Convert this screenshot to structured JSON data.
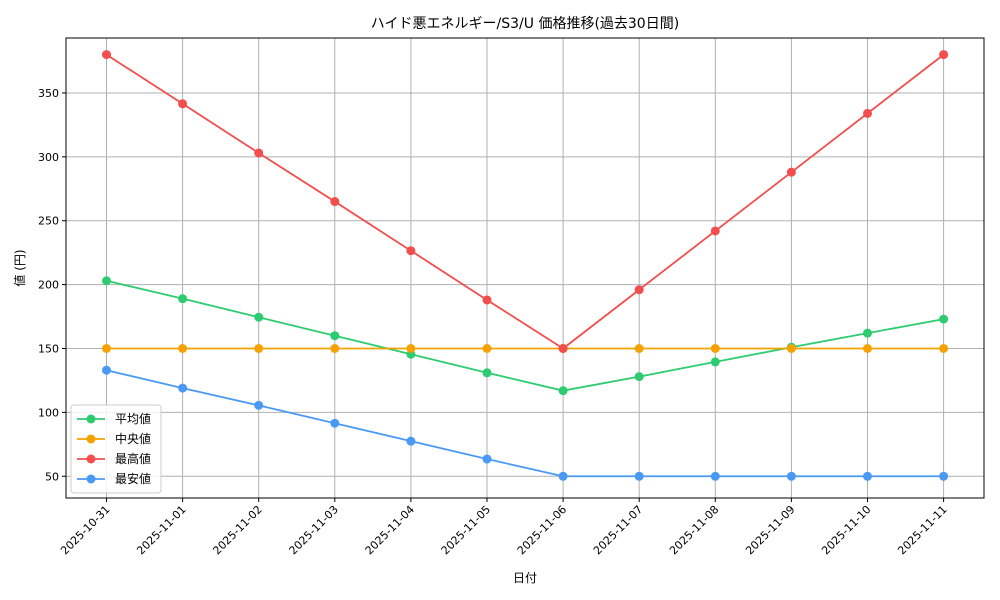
{
  "chart_data": {
    "type": "line",
    "title": "ハイド悪エネルギー/S3/U 価格推移(過去30日間)",
    "xlabel": "日付",
    "ylabel": "値 (円)",
    "categories": [
      "2025-10-31",
      "2025-11-01",
      "2025-11-02",
      "2025-11-03",
      "2025-11-04",
      "2025-11-05",
      "2025-11-06",
      "2025-11-07",
      "2025-11-08",
      "2025-11-09",
      "2025-11-10",
      "2025-11-11"
    ],
    "ylim": [
      33,
      393
    ],
    "yticks": [
      50,
      100,
      150,
      200,
      250,
      300,
      350
    ],
    "grid": true,
    "legend_position": "lower-left",
    "series": [
      {
        "name": "平均値",
        "color": "#2ecc71",
        "values": [
          203,
          189,
          174.5,
          160,
          145.5,
          131,
          117,
          128,
          139.5,
          151,
          162,
          173
        ]
      },
      {
        "name": "中央値",
        "color": "#f5a200",
        "values": [
          150,
          150,
          150,
          150,
          150,
          150,
          150,
          150,
          150,
          150,
          150,
          150
        ]
      },
      {
        "name": "最高値",
        "color": "#f24e4e",
        "values": [
          380,
          341.5,
          303,
          265,
          226.5,
          188,
          150,
          196,
          242,
          288,
          334,
          380
        ]
      },
      {
        "name": "最安値",
        "color": "#4a9af5",
        "values": [
          133,
          119,
          105.5,
          91.5,
          77.5,
          63.5,
          50,
          50,
          50,
          50,
          50,
          50
        ]
      }
    ]
  }
}
